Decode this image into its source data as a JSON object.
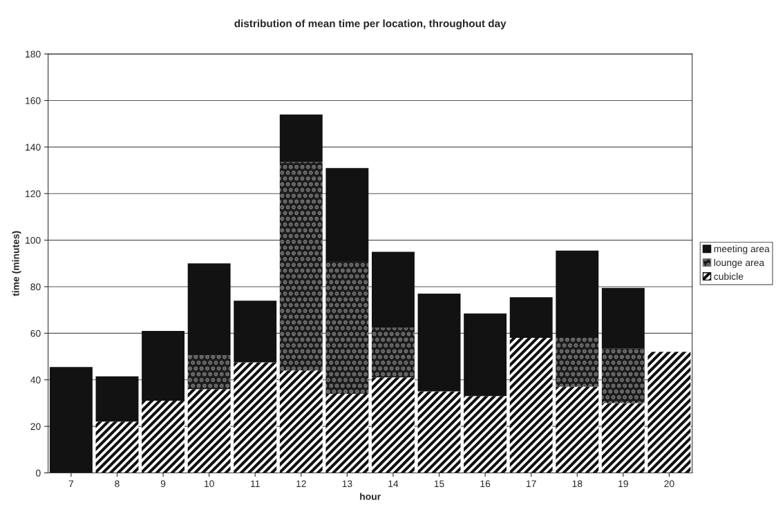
{
  "chart_data": {
    "type": "bar",
    "stacked": true,
    "title": "distribution of mean time per location, throughout day",
    "xlabel": "hour",
    "ylabel": "time (minutes)",
    "categories": [
      "7",
      "8",
      "9",
      "10",
      "11",
      "12",
      "13",
      "14",
      "15",
      "16",
      "17",
      "18",
      "19",
      "20"
    ],
    "series": [
      {
        "name": "cubicle",
        "color": "#111111",
        "values": [
          0,
          22,
          31,
          36,
          47.5,
          44,
          34,
          41,
          35,
          33,
          58,
          37,
          30,
          52
        ]
      },
      {
        "name": "lounge area",
        "color": "#777777",
        "values": [
          0,
          0,
          0,
          14.5,
          0,
          89.5,
          57,
          21.5,
          0,
          0,
          0,
          21,
          23.5,
          0
        ]
      },
      {
        "name": "meeting area",
        "color": "#121212",
        "values": [
          45.5,
          19.5,
          30,
          39.5,
          26.5,
          20.5,
          40,
          32.5,
          42,
          35.5,
          17.5,
          37.5,
          26,
          0
        ]
      }
    ],
    "ylim": [
      0,
      180
    ],
    "yticks": [
      0,
      20,
      40,
      60,
      80,
      100,
      120,
      140,
      160,
      180
    ],
    "grid": "y",
    "legend": "right"
  }
}
